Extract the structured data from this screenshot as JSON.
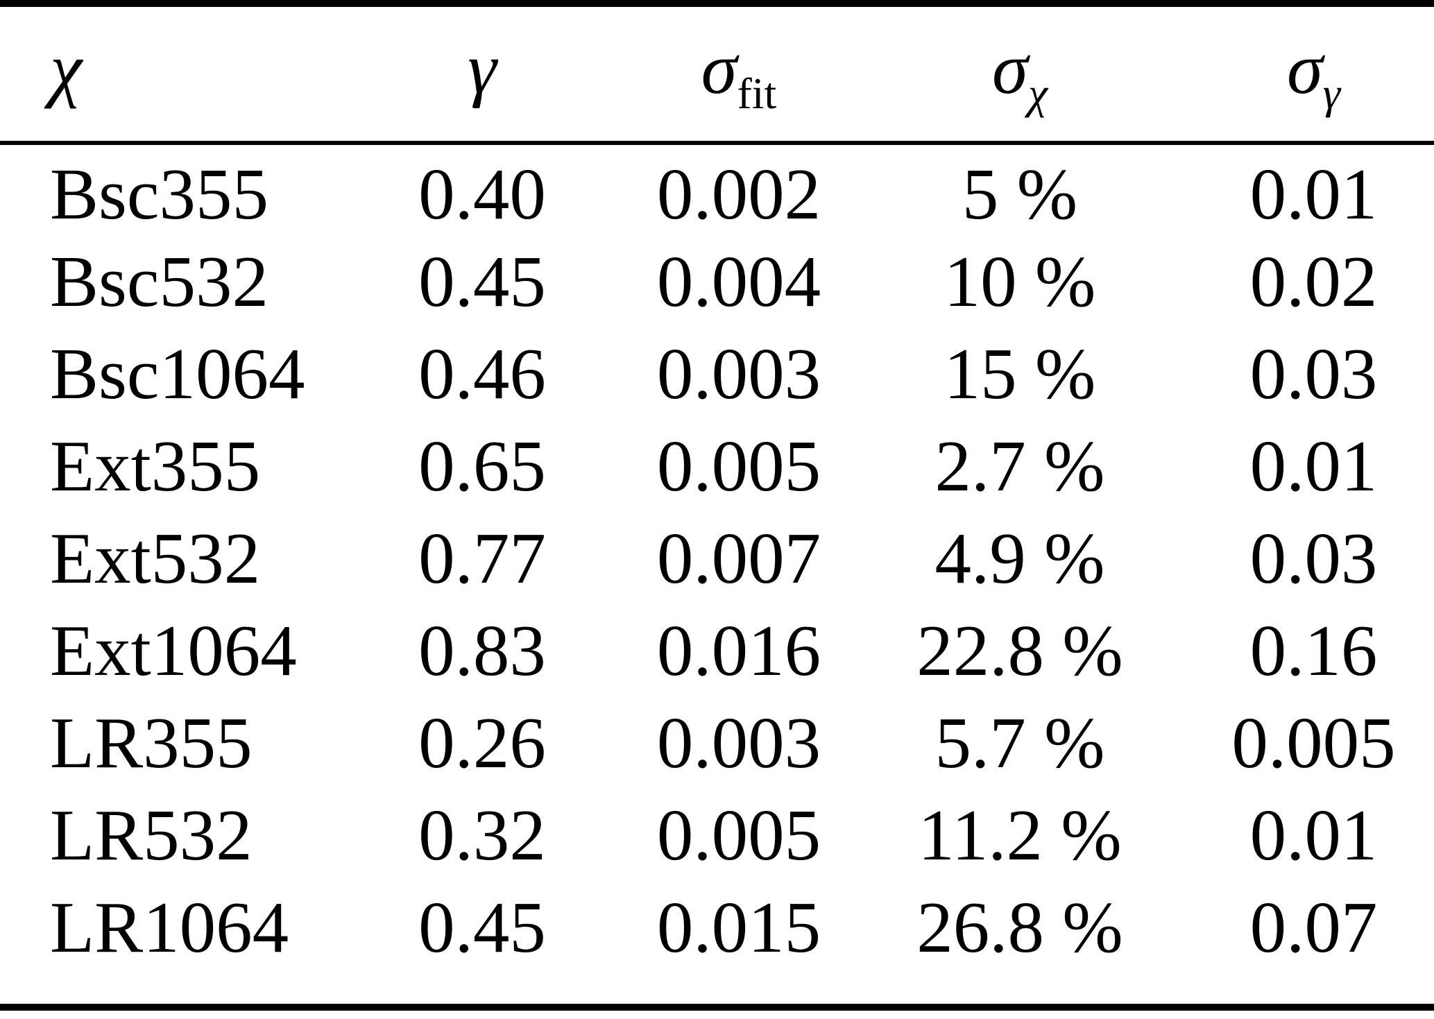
{
  "table": {
    "header": [
      {
        "main": "χ",
        "sub": ""
      },
      {
        "main": "γ",
        "sub": ""
      },
      {
        "main": "σ",
        "sub": "fit"
      },
      {
        "main": "σ",
        "sub": "χ"
      },
      {
        "main": "σ",
        "sub": "γ"
      }
    ],
    "rows": [
      [
        "Bsc355",
        "0.40",
        "0.002",
        "5 %",
        "0.01"
      ],
      [
        "Bsc532",
        "0.45",
        "0.004",
        "10 %",
        "0.02"
      ],
      [
        "Bsc1064",
        "0.46",
        "0.003",
        "15 %",
        "0.03"
      ],
      [
        "Ext355",
        "0.65",
        "0.005",
        "2.7 %",
        "0.01"
      ],
      [
        "Ext532",
        "0.77",
        "0.007",
        "4.9 %",
        "0.03"
      ],
      [
        "Ext1064",
        "0.83",
        "0.016",
        "22.8 %",
        "0.16"
      ],
      [
        "LR355",
        "0.26",
        "0.003",
        "5.7 %",
        "0.005"
      ],
      [
        "LR532",
        "0.32",
        "0.005",
        "11.2 %",
        "0.01"
      ],
      [
        "LR1064",
        "0.45",
        "0.015",
        "26.8 %",
        "0.07"
      ]
    ],
    "rules_color": "#000000",
    "background_color": "#ffffff"
  }
}
